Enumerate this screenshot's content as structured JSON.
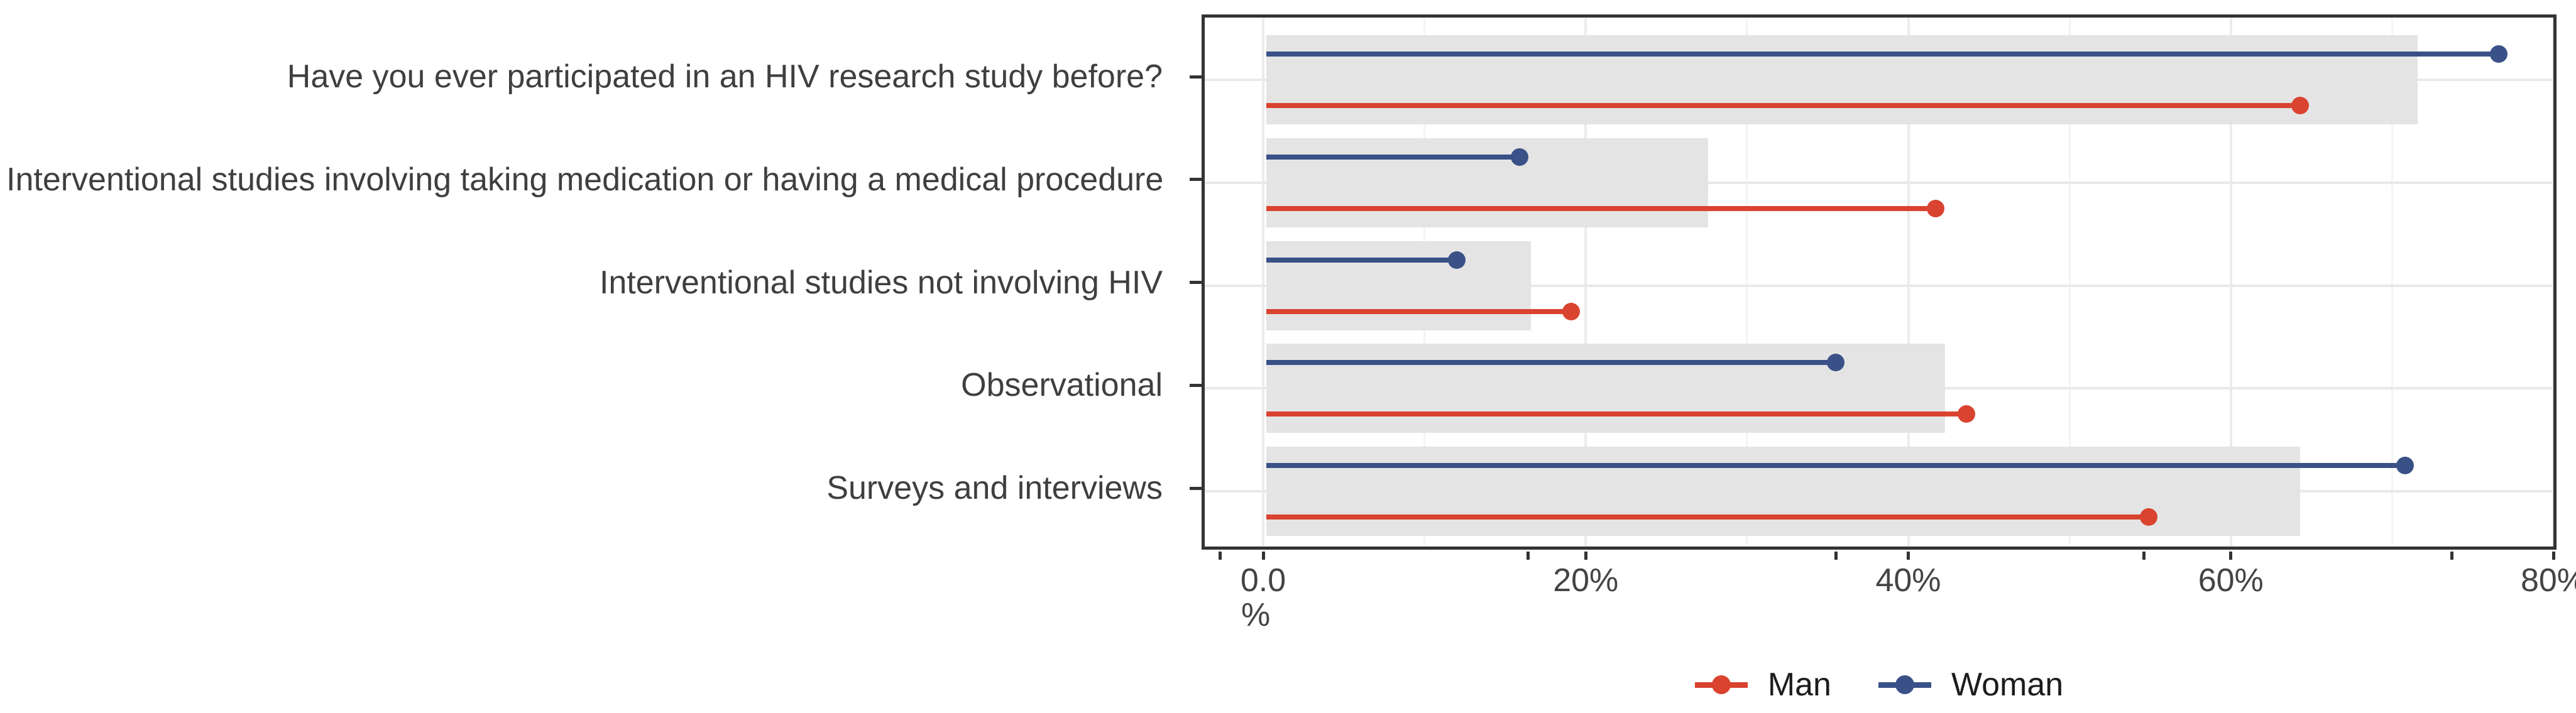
{
  "chart_data": {
    "type": "bar",
    "subtype": "horizontal lollipop (dumbbell) chart with light-gray background bars per category",
    "title": "",
    "categories": [
      "Have you ever participated in an HIV research study before?",
      "Interventional studies involving taking medication or having a medical procedure",
      "Interventional studies not involving HIV",
      "Observational",
      "Surveys and interviews"
    ],
    "series": [
      {
        "name": "Man",
        "color": "#D9432F",
        "values": [
          64.1,
          41.5,
          18.9,
          43.4,
          54.7
        ]
      },
      {
        "name": "Woman",
        "color": "#3A5188",
        "values": [
          76.4,
          15.7,
          11.8,
          35.3,
          70.6
        ]
      }
    ],
    "background_bars": {
      "color": "#E4E4E4",
      "values": [
        71.4,
        27.4,
        16.4,
        42.1,
        64.1
      ]
    },
    "xlabel": "%",
    "x_ticks": {
      "values": [
        0,
        20,
        40,
        60,
        80
      ],
      "labels": [
        "0.0",
        "20%",
        "40%",
        "60%",
        "80%"
      ]
    },
    "x_extra_ticks": [
      -2.65,
      16.44,
      35.53,
      54.62,
      73.71
    ],
    "x_minor_gridlines": [
      10,
      30,
      50,
      70
    ],
    "xlim": [
      -3.8,
      80.2
    ],
    "grid": true,
    "legend_position": "bottom",
    "colors": {
      "man": "#D9432F",
      "woman": "#3A5188",
      "background_bar": "#E4E4E4",
      "grid_major": "#ECECEC",
      "grid_minor": "#F4F4F4",
      "grid_horizontal": "#E9E9E9",
      "panel_border": "#333333",
      "axis_text": "#444444",
      "category_text": "#3F3F3F",
      "legend_text": "#1C1C1C",
      "background": "#FFFFFF"
    }
  }
}
